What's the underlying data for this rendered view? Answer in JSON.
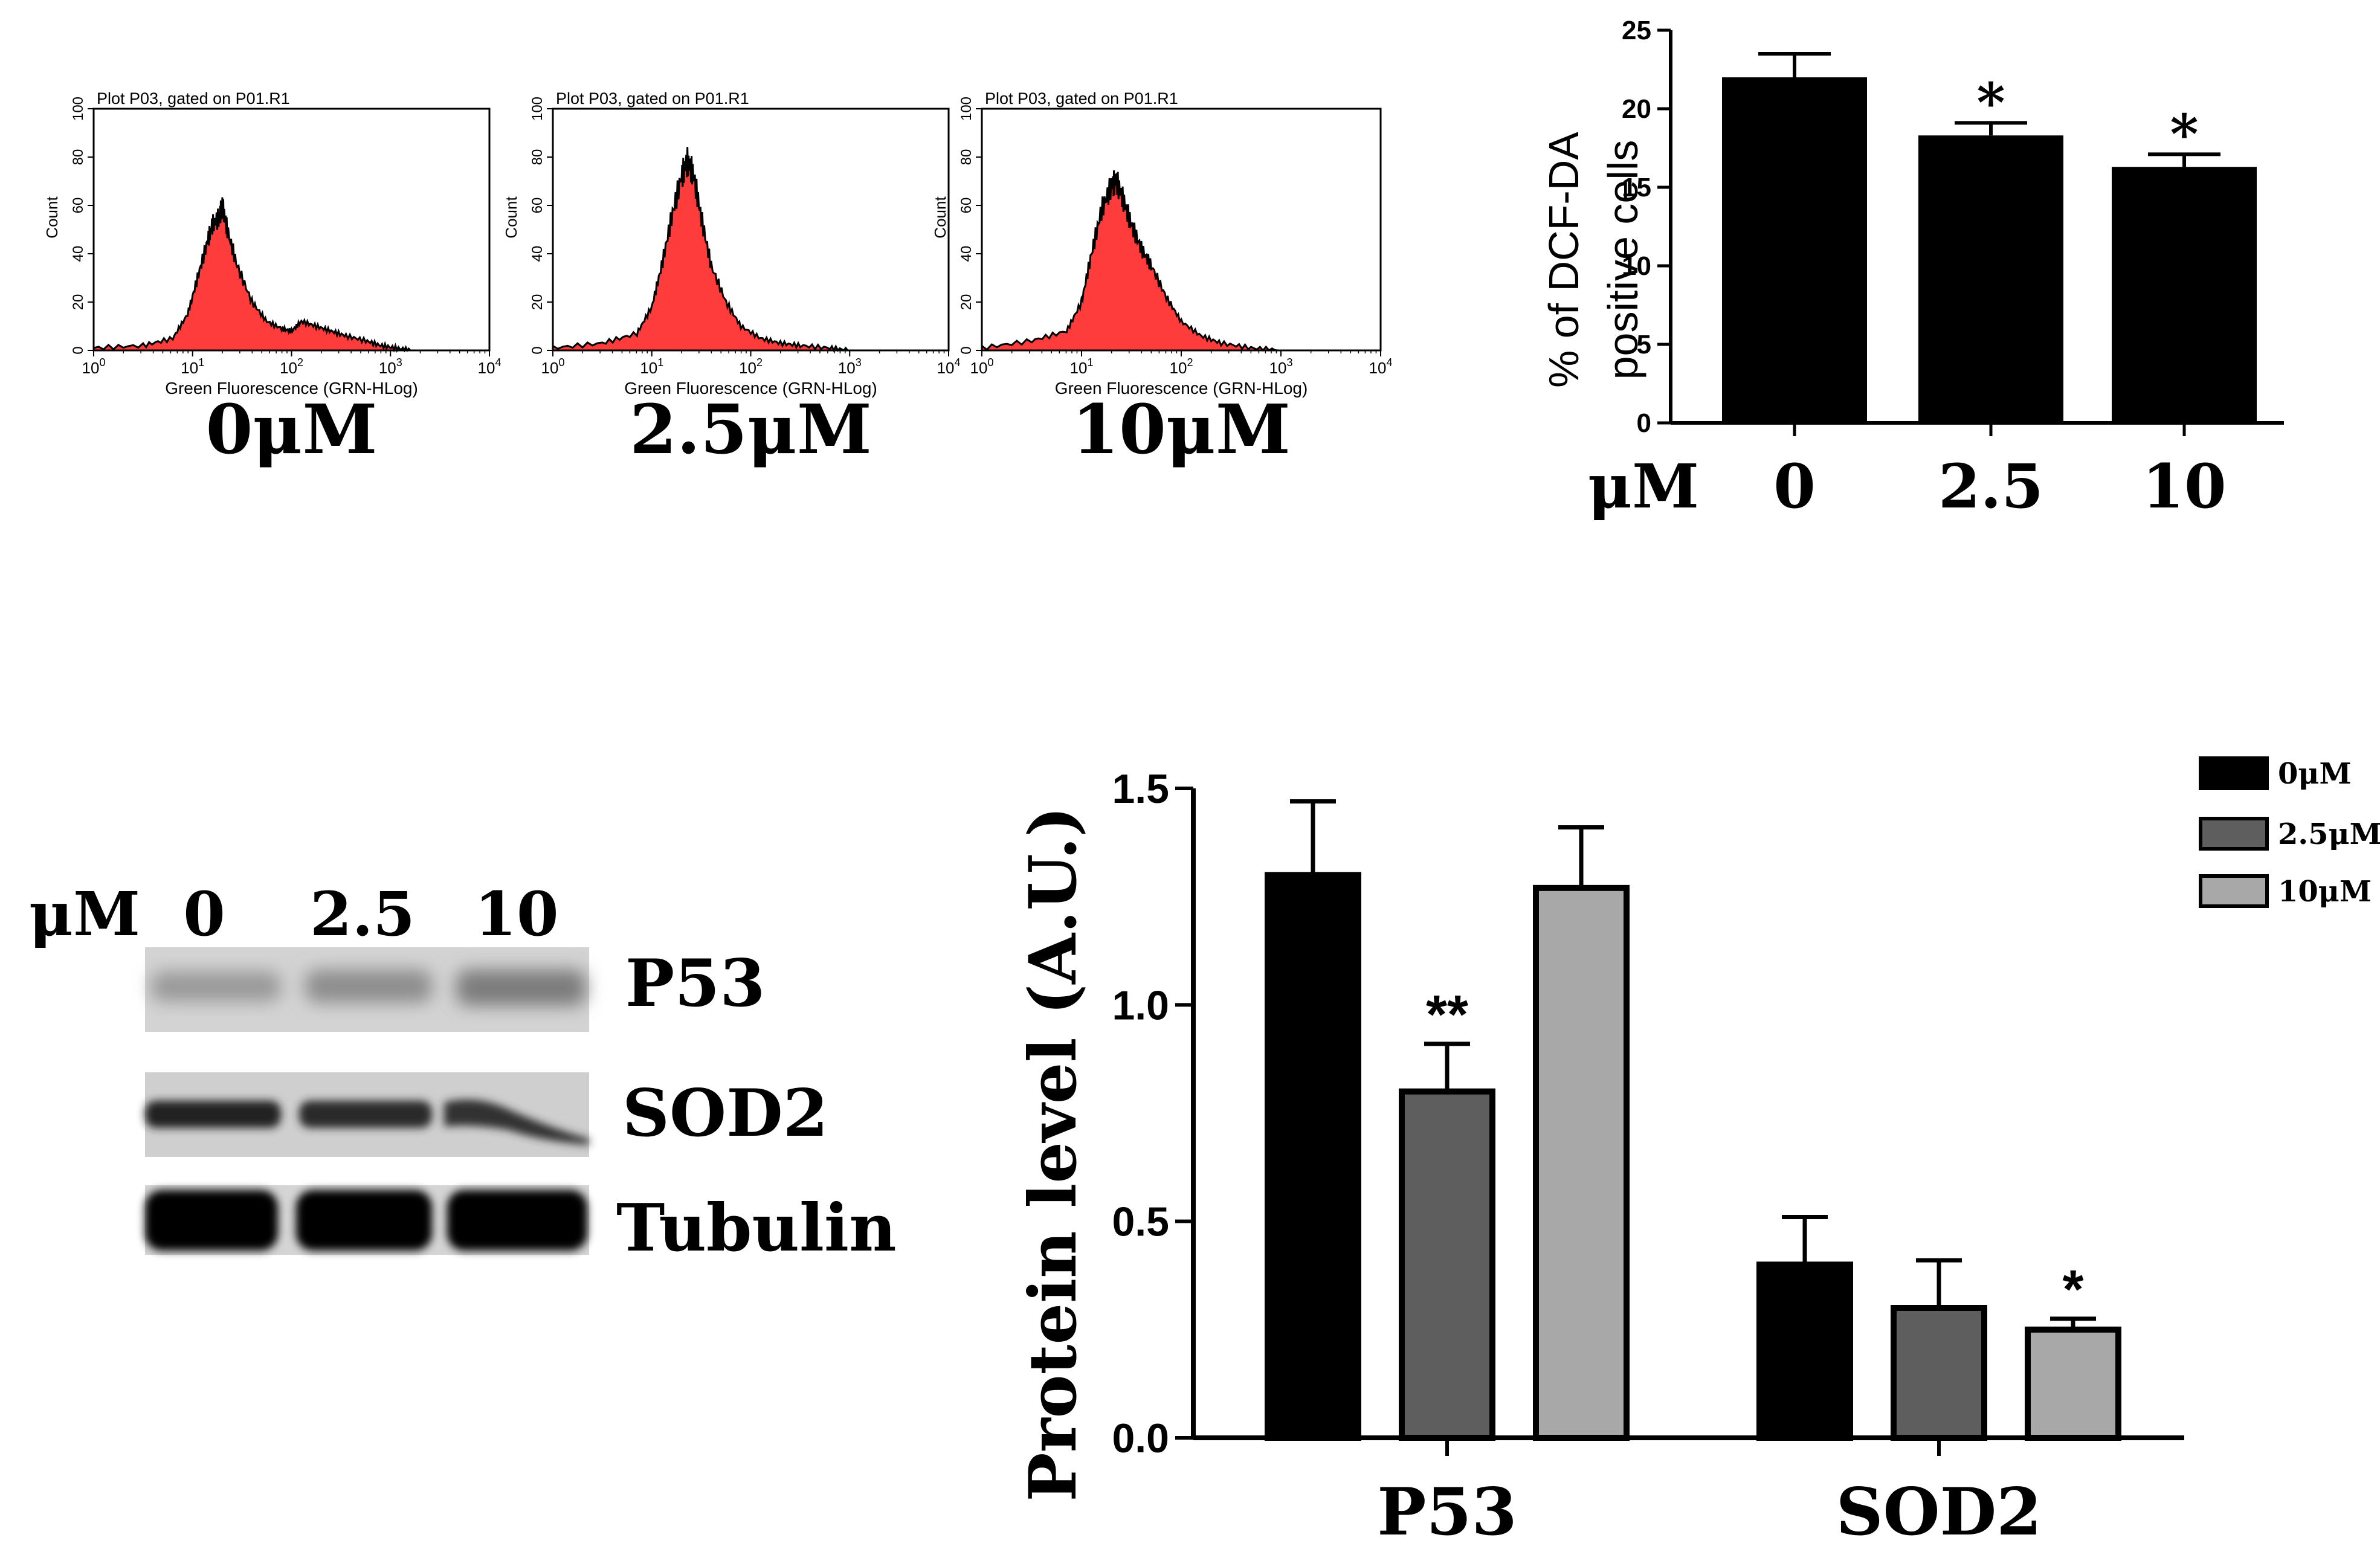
{
  "colors": {
    "histogram_fill": "#ff3c3c",
    "black": "#000000",
    "dark_gray": "#5e5e5e",
    "light_gray": "#a8a8a8"
  },
  "histograms": [
    {
      "header": "Plot P03, gated on P01.R1",
      "xlabel": "Green Fluorescence (GRN-HLog)",
      "ylabel": "Count",
      "yticks": [
        "0",
        "20",
        "40",
        "60",
        "80",
        "100"
      ],
      "caption": "0μM",
      "curve": [
        [
          0,
          1
        ],
        [
          0.5,
          2
        ],
        [
          0.8,
          5
        ],
        [
          0.95,
          15
        ],
        [
          1.05,
          30
        ],
        [
          1.15,
          45
        ],
        [
          1.2,
          52
        ],
        [
          1.27,
          55
        ],
        [
          1.3,
          60
        ],
        [
          1.35,
          50
        ],
        [
          1.45,
          35
        ],
        [
          1.6,
          20
        ],
        [
          1.75,
          12
        ],
        [
          1.9,
          9
        ],
        [
          2.0,
          8
        ],
        [
          2.1,
          12
        ],
        [
          2.25,
          10
        ],
        [
          2.4,
          8
        ],
        [
          2.55,
          6
        ],
        [
          2.75,
          4
        ],
        [
          2.9,
          2
        ],
        [
          3.05,
          1
        ],
        [
          3.2,
          0
        ]
      ]
    },
    {
      "header": "Plot P03, gated on P01.R1",
      "xlabel": "Green Fluorescence (GRN-HLog)",
      "ylabel": "Count",
      "yticks": [
        "0",
        "20",
        "40",
        "60",
        "80",
        "100"
      ],
      "caption": "2.5μM",
      "curve": [
        [
          0,
          1
        ],
        [
          0.5,
          3
        ],
        [
          0.85,
          7
        ],
        [
          1.0,
          18
        ],
        [
          1.1,
          35
        ],
        [
          1.2,
          55
        ],
        [
          1.3,
          72
        ],
        [
          1.36,
          78
        ],
        [
          1.42,
          73
        ],
        [
          1.5,
          55
        ],
        [
          1.6,
          35
        ],
        [
          1.75,
          20
        ],
        [
          1.9,
          10
        ],
        [
          2.1,
          5
        ],
        [
          2.3,
          3
        ],
        [
          2.5,
          2
        ],
        [
          2.8,
          1
        ],
        [
          3.0,
          0
        ]
      ]
    },
    {
      "header": "Plot P03, gated on P01.R1",
      "xlabel": "Green Fluorescence (GRN-HLog)",
      "ylabel": "Count",
      "yticks": [
        "0",
        "20",
        "40",
        "60",
        "80",
        "100"
      ],
      "caption": "10μM",
      "curve": [
        [
          0,
          1
        ],
        [
          0.5,
          4
        ],
        [
          0.85,
          8
        ],
        [
          1.0,
          20
        ],
        [
          1.1,
          40
        ],
        [
          1.2,
          58
        ],
        [
          1.3,
          68
        ],
        [
          1.35,
          70
        ],
        [
          1.42,
          62
        ],
        [
          1.5,
          52
        ],
        [
          1.6,
          42
        ],
        [
          1.7,
          35
        ],
        [
          1.85,
          22
        ],
        [
          2.0,
          12
        ],
        [
          2.2,
          6
        ],
        [
          2.4,
          3
        ],
        [
          2.7,
          1
        ],
        [
          3.0,
          0
        ]
      ]
    }
  ],
  "histogram_xticks": [
    {
      "base": "10",
      "exp": "0"
    },
    {
      "base": "10",
      "exp": "1"
    },
    {
      "base": "10",
      "exp": "2"
    },
    {
      "base": "10",
      "exp": "3"
    },
    {
      "base": "10",
      "exp": "4"
    }
  ],
  "chart_data": [
    {
      "type": "bar",
      "ylabel_line1": "% of DCF-DA",
      "ylabel_line2": "positive cells",
      "xlabel": "μM",
      "categories": [
        "0",
        "2.5",
        "10"
      ],
      "values": [
        22,
        18.3,
        16.3
      ],
      "errors": [
        1.5,
        0.8,
        0.8
      ],
      "annotations": [
        "",
        "*",
        "*"
      ],
      "ylim": [
        0,
        25
      ],
      "yticks": [
        "0",
        "5",
        "10",
        "15",
        "20",
        "25"
      ]
    },
    {
      "type": "bar",
      "ylabel": "Protein level (A.U.)",
      "categories": [
        "P53",
        "SOD2"
      ],
      "series": [
        {
          "name": "0μM",
          "values": [
            1.3,
            0.4
          ],
          "errors": [
            0.17,
            0.11
          ]
        },
        {
          "name": "2.5μM",
          "values": [
            0.8,
            0.3
          ],
          "errors": [
            0.11,
            0.11
          ]
        },
        {
          "name": "10μM",
          "values": [
            1.27,
            0.25
          ],
          "errors": [
            0.14,
            0.025
          ]
        }
      ],
      "annotations": [
        [
          "",
          "**",
          ""
        ],
        [
          "",
          "",
          "*"
        ]
      ],
      "ylim": [
        0,
        1.5
      ],
      "yticks": [
        "0.0",
        "0.5",
        "1.0",
        "1.5"
      ],
      "legend_position": "top-right"
    }
  ],
  "western_blot": {
    "unit": "μM",
    "lanes": [
      "0",
      "2.5",
      "10"
    ],
    "bands": [
      "P53",
      "SOD2",
      "Tubulin"
    ]
  }
}
